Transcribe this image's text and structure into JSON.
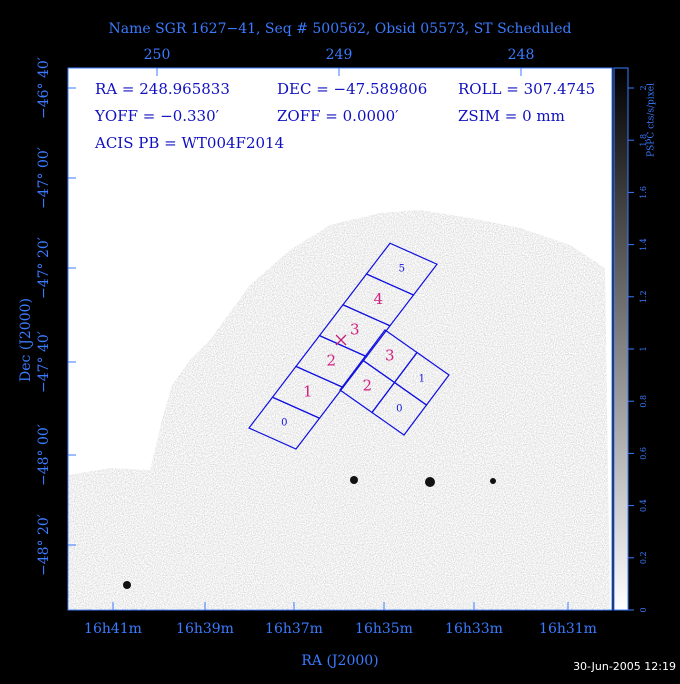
{
  "title": "Name SGR 1627−41, Seq # 500562, Obsid 05573, ST Scheduled",
  "info": [
    "RA = 248.965833",
    "DEC = −47.589806",
    "ROLL = 307.4745",
    "YOFF =  −0.330′",
    "ZOFF =  0.0000′",
    "ZSIM = 0 mm",
    "ACIS PB = WT004F2014"
  ],
  "top_axis": [
    "250",
    "249",
    "248"
  ],
  "left_axis": [
    "−46° 40′",
    "−47° 00′",
    "−47° 20′",
    "−47° 40′",
    "−48° 00′",
    "−48° 20′"
  ],
  "bottom_axis": [
    "16h41m",
    "16h39m",
    "16h37m",
    "16h35m",
    "16h33m",
    "16h31m"
  ],
  "x_axis_title": "RA (J2000)",
  "y_axis_title": "Dec (J2000)",
  "colorbar_title": "PSPC cts/s/pixel",
  "colorbar_ticks": [
    "0",
    "0.2",
    "0.4",
    "0.6",
    "0.8",
    "1",
    "1.2",
    "1.4",
    "1.6",
    "1.8",
    "2"
  ],
  "s_chips": [
    "0",
    "1",
    "2",
    "3",
    "4",
    "5"
  ],
  "i_chips": [
    "3",
    "1",
    "2",
    "0"
  ],
  "timestamp": "30-Jun-2005 12:19"
}
